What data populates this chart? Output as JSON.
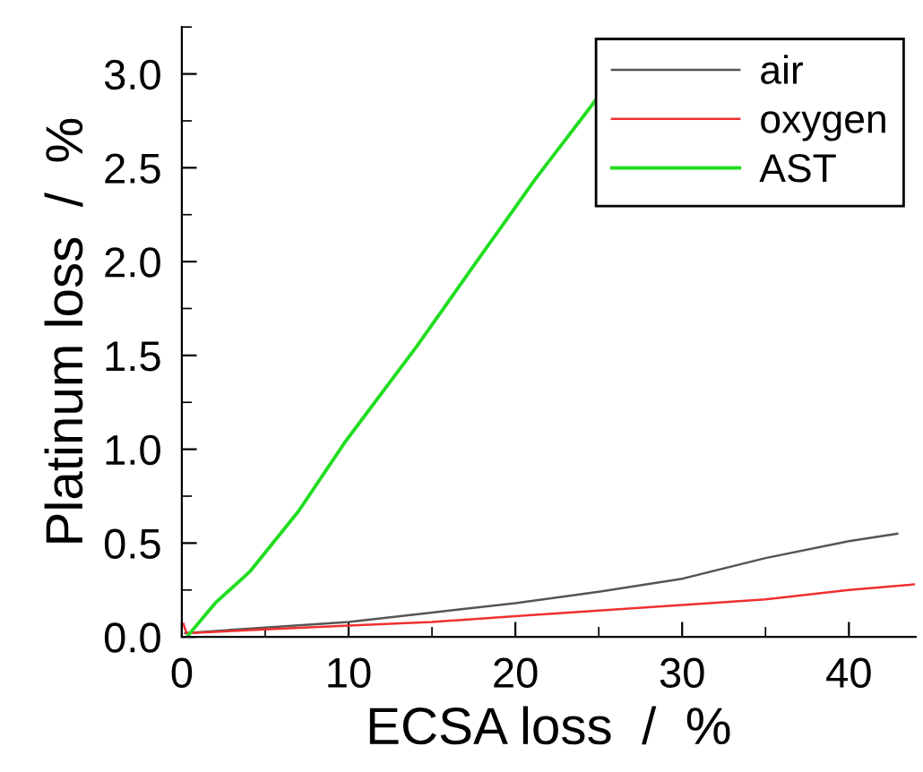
{
  "chart_data": {
    "type": "line",
    "xlabel": "ECSA loss  /  %",
    "ylabel": "Platinum loss  /  %",
    "xlim": [
      0,
      44
    ],
    "ylim": [
      0,
      3.25
    ],
    "xticks": [
      0,
      10,
      20,
      30,
      40
    ],
    "yticks": [
      {
        "value": 0,
        "label": "0.0"
      },
      {
        "value": 0.5,
        "label": "0.5"
      },
      {
        "value": 1,
        "label": "1.0"
      },
      {
        "value": 1.5,
        "label": "1.5"
      },
      {
        "value": 2,
        "label": "2.0"
      },
      {
        "value": 2.5,
        "label": "2.5"
      },
      {
        "value": 3,
        "label": "3.0"
      }
    ],
    "grid": false,
    "legend": "top right",
    "marker": "none",
    "line_style": "solid",
    "series": [
      {
        "name": "air",
        "color": "#555555",
        "x": [
          0.2,
          5,
          10,
          15,
          20,
          25,
          30,
          35,
          40,
          42.9
        ],
        "values": [
          0.02,
          0.05,
          0.08,
          0.13,
          0.18,
          0.24,
          0.31,
          0.42,
          0.51,
          0.55
        ]
      },
      {
        "name": "oxygen",
        "color": "#ee3030",
        "x": [
          0.1,
          0.2,
          0.3,
          5,
          10,
          15,
          20,
          25,
          30,
          35,
          40,
          43.9
        ],
        "values": [
          0.07,
          0.04,
          0.02,
          0.04,
          0.06,
          0.08,
          0.11,
          0.14,
          0.17,
          0.2,
          0.25,
          0.28
        ]
      },
      {
        "name": "AST",
        "color": "#22dd22",
        "x": [
          0.3,
          2,
          4.1,
          7,
          9.8,
          14.1,
          17.6,
          21.2,
          24.9
        ],
        "values": [
          0,
          0.18,
          0.35,
          0.67,
          1.04,
          1.55,
          1.99,
          2.44,
          2.87
        ]
      }
    ]
  }
}
